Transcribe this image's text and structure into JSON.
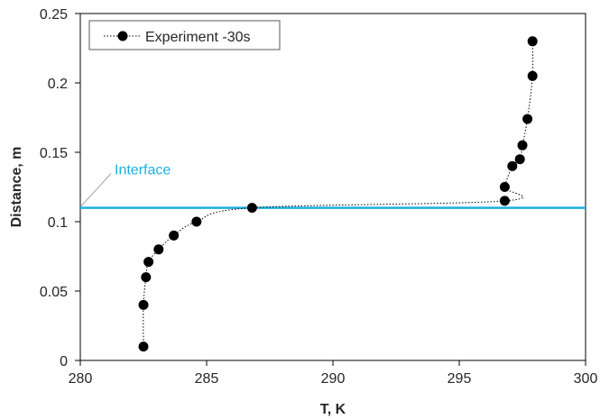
{
  "chart_data": {
    "type": "scatter",
    "xlabel": "T, K",
    "ylabel": "Distance, m",
    "xlim": [
      280,
      300
    ],
    "ylim": [
      0,
      0.25
    ],
    "x_ticks": [
      "280",
      "285",
      "290",
      "295",
      "300"
    ],
    "y_ticks": [
      "0",
      "0.05",
      "0.1",
      "0.15",
      "0.2",
      "0.25"
    ],
    "grid": false,
    "legend_position": "top-left",
    "series": [
      {
        "name": "Experiment -30s",
        "color": "#000000",
        "line_style": "dotted",
        "points": [
          {
            "x": 282.5,
            "y": 0.01
          },
          {
            "x": 282.5,
            "y": 0.04
          },
          {
            "x": 282.6,
            "y": 0.06
          },
          {
            "x": 282.7,
            "y": 0.071
          },
          {
            "x": 283.1,
            "y": 0.08
          },
          {
            "x": 283.7,
            "y": 0.09
          },
          {
            "x": 284.6,
            "y": 0.1
          },
          {
            "x": 286.8,
            "y": 0.11
          },
          {
            "x": 296.8,
            "y": 0.115
          },
          {
            "x": 296.8,
            "y": 0.125
          },
          {
            "x": 297.1,
            "y": 0.14
          },
          {
            "x": 297.4,
            "y": 0.145
          },
          {
            "x": 297.5,
            "y": 0.155
          },
          {
            "x": 297.7,
            "y": 0.174
          },
          {
            "x": 297.9,
            "y": 0.205
          },
          {
            "x": 297.9,
            "y": 0.23
          }
        ]
      }
    ],
    "reference_line": {
      "label": "Interface",
      "y": 0.11,
      "color": "#1ab0e0"
    }
  }
}
